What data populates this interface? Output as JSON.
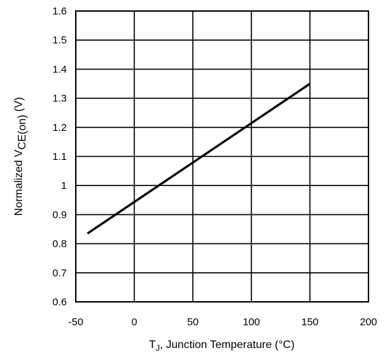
{
  "chart_data": {
    "type": "line",
    "xlabel_parts": [
      "T",
      "J",
      ", Junction Temperature (°C)"
    ],
    "ylabel_parts": [
      "Normalized V",
      "CE(on)",
      " (V)"
    ],
    "xlim": [
      -50,
      200
    ],
    "ylim": [
      0.6,
      1.6
    ],
    "x_ticks": [
      -50,
      0,
      50,
      100,
      150,
      200
    ],
    "x_tick_labels": [
      "-50",
      "0",
      "50",
      "100",
      "150",
      "200"
    ],
    "y_ticks": [
      0.6,
      0.7,
      0.8,
      0.9,
      1.0,
      1.1,
      1.2,
      1.3,
      1.4,
      1.5,
      1.6
    ],
    "y_tick_labels": [
      "0.6",
      "0.7",
      "0.8",
      "0.9",
      "1",
      "1.1",
      "1.2",
      "1.3",
      "1.4",
      "1.5",
      "1.6"
    ],
    "grid": true,
    "series": [
      {
        "x": [
          -40,
          150
        ],
        "y": [
          0.835,
          1.35
        ],
        "color": "#000000"
      }
    ]
  }
}
